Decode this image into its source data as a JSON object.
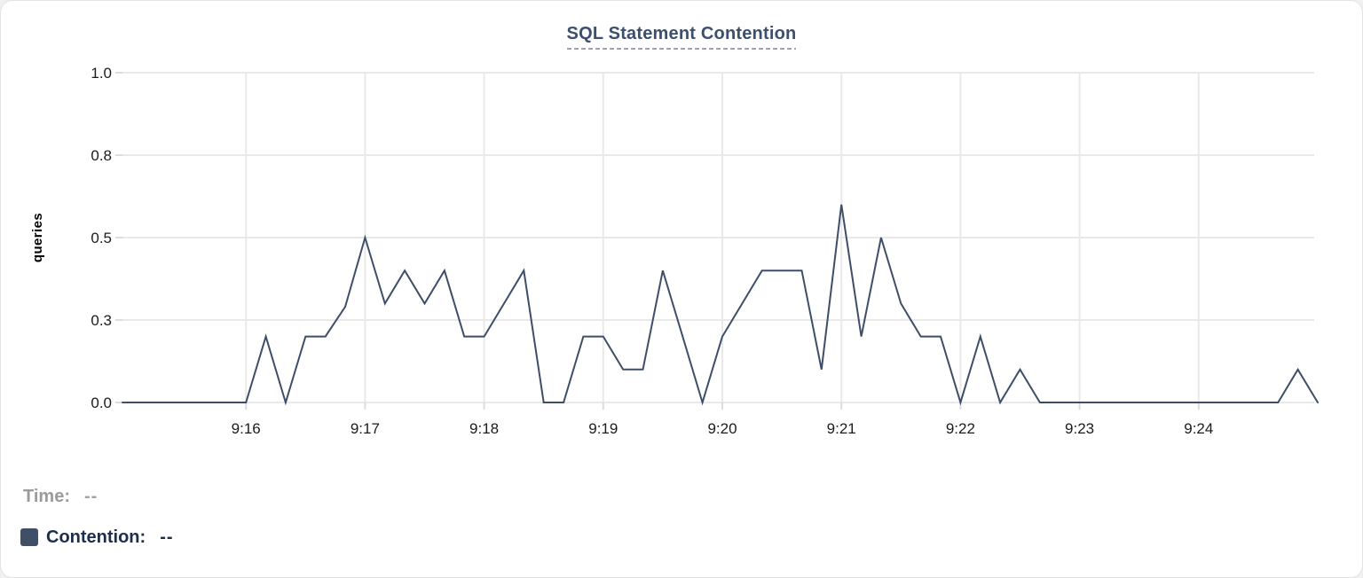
{
  "title": "SQL Statement Contention",
  "tooltip": {
    "time_label": "Time:",
    "time_value": "--",
    "series_label": "Contention:",
    "series_value": "--"
  },
  "colors": {
    "page_bg": "#F0F0F1",
    "card_bg": "#FFFFFF",
    "card_border": "#E3E3E3",
    "title": "#3B4F6F",
    "title_underline": "#9AA3C4",
    "grid": "#E9E9E9",
    "tick": "#DCDCDC",
    "tick_label": "#1B1B1B",
    "axis_title": "#000000",
    "line": "#3E4E68",
    "time_label": "#9B9B9B",
    "time_value": "#A3A3A3",
    "legend_text": "#1E2D4C",
    "swatch": "#3E4F66"
  },
  "chart_data": {
    "type": "line",
    "title": "SQL Statement Contention",
    "xlabel": "",
    "ylabel": "queries",
    "ylim": [
      0,
      1.0
    ],
    "grid": true,
    "legend_position": "below-left",
    "y_ticks": [
      {
        "value": 0,
        "label": "0.0"
      },
      {
        "value": 0.25,
        "label": "0.3"
      },
      {
        "value": 0.5,
        "label": "0.5"
      },
      {
        "value": 0.75,
        "label": "0.8"
      },
      {
        "value": 1.0,
        "label": "1.0"
      }
    ],
    "x_ticks": [
      "9:16",
      "9:17",
      "9:18",
      "9:19",
      "9:20",
      "9:21",
      "9:22",
      "9:23",
      "9:24"
    ],
    "sample_interval_seconds": 10,
    "series": [
      {
        "name": "Contention",
        "unit": "queries",
        "points": [
          {
            "t": "9:15:00",
            "v": 0
          },
          {
            "t": "9:15:10",
            "v": 0
          },
          {
            "t": "9:15:20",
            "v": 0
          },
          {
            "t": "9:15:30",
            "v": 0
          },
          {
            "t": "9:15:40",
            "v": 0
          },
          {
            "t": "9:15:50",
            "v": 0
          },
          {
            "t": "9:16:00",
            "v": 0
          },
          {
            "t": "9:16:10",
            "v": 0.2
          },
          {
            "t": "9:16:20",
            "v": 0
          },
          {
            "t": "9:16:30",
            "v": 0.2
          },
          {
            "t": "9:16:40",
            "v": 0.2
          },
          {
            "t": "9:16:50",
            "v": 0.29
          },
          {
            "t": "9:17:00",
            "v": 0.5
          },
          {
            "t": "9:17:10",
            "v": 0.3
          },
          {
            "t": "9:17:20",
            "v": 0.4
          },
          {
            "t": "9:17:30",
            "v": 0.3
          },
          {
            "t": "9:17:40",
            "v": 0.4
          },
          {
            "t": "9:17:50",
            "v": 0.2
          },
          {
            "t": "9:18:00",
            "v": 0.2
          },
          {
            "t": "9:18:10",
            "v": 0.3
          },
          {
            "t": "9:18:20",
            "v": 0.4
          },
          {
            "t": "9:18:30",
            "v": 0
          },
          {
            "t": "9:18:40",
            "v": 0
          },
          {
            "t": "9:18:50",
            "v": 0.2
          },
          {
            "t": "9:19:00",
            "v": 0.2
          },
          {
            "t": "9:19:10",
            "v": 0.1
          },
          {
            "t": "9:19:20",
            "v": 0.1
          },
          {
            "t": "9:19:30",
            "v": 0.4
          },
          {
            "t": "9:19:40",
            "v": 0.2
          },
          {
            "t": "9:19:50",
            "v": 0
          },
          {
            "t": "9:20:00",
            "v": 0.2
          },
          {
            "t": "9:20:10",
            "v": 0.3
          },
          {
            "t": "9:20:20",
            "v": 0.4
          },
          {
            "t": "9:20:30",
            "v": 0.4
          },
          {
            "t": "9:20:40",
            "v": 0.4
          },
          {
            "t": "9:20:50",
            "v": 0.1
          },
          {
            "t": "9:21:00",
            "v": 0.6
          },
          {
            "t": "9:21:10",
            "v": 0.2
          },
          {
            "t": "9:21:20",
            "v": 0.5
          },
          {
            "t": "9:21:30",
            "v": 0.3
          },
          {
            "t": "9:21:40",
            "v": 0.2
          },
          {
            "t": "9:21:50",
            "v": 0.2
          },
          {
            "t": "9:22:00",
            "v": 0
          },
          {
            "t": "9:22:10",
            "v": 0.2
          },
          {
            "t": "9:22:20",
            "v": 0
          },
          {
            "t": "9:22:30",
            "v": 0.1
          },
          {
            "t": "9:22:40",
            "v": 0
          },
          {
            "t": "9:22:50",
            "v": 0
          },
          {
            "t": "9:23:00",
            "v": 0
          },
          {
            "t": "9:23:10",
            "v": 0
          },
          {
            "t": "9:23:20",
            "v": 0
          },
          {
            "t": "9:23:30",
            "v": 0
          },
          {
            "t": "9:23:40",
            "v": 0
          },
          {
            "t": "9:23:50",
            "v": 0
          },
          {
            "t": "9:24:00",
            "v": 0
          },
          {
            "t": "9:24:10",
            "v": 0
          },
          {
            "t": "9:24:20",
            "v": 0
          },
          {
            "t": "9:24:30",
            "v": 0
          },
          {
            "t": "9:24:40",
            "v": 0
          },
          {
            "t": "9:24:50",
            "v": 0.1
          },
          {
            "t": "9:25:00",
            "v": 0
          }
        ]
      }
    ]
  }
}
